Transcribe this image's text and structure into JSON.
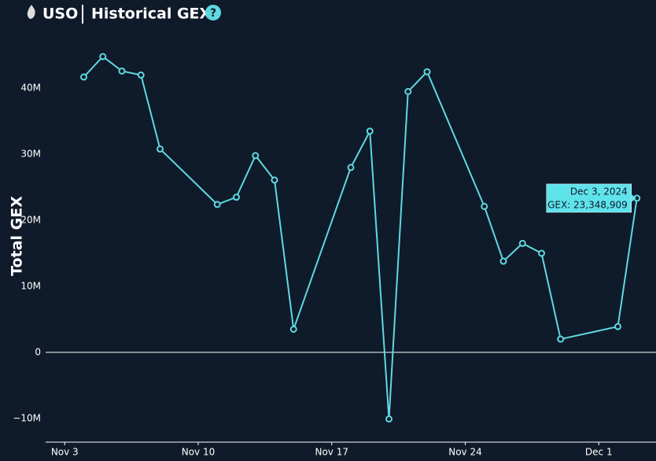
{
  "chart_data": {
    "type": "line",
    "title": "USO",
    "subtitle": "Historical GEX",
    "help": "?",
    "y_label": "Total GEX",
    "x": [
      "2024-11-04",
      "2024-11-05",
      "2024-11-06",
      "2024-11-07",
      "2024-11-08",
      "2024-11-11",
      "2024-11-12",
      "2024-11-13",
      "2024-11-14",
      "2024-11-15",
      "2024-11-18",
      "2024-11-19",
      "2024-11-20",
      "2024-11-21",
      "2024-11-22",
      "2024-11-25",
      "2024-11-26",
      "2024-11-27",
      "2024-11-28",
      "2024-11-29",
      "2024-12-02",
      "2024-12-03"
    ],
    "series": [
      {
        "name": "GEX",
        "color": "#5fd8e0",
        "values": [
          41700000,
          44800000,
          42600000,
          42000000,
          30800000,
          22400000,
          23500000,
          29800000,
          26100000,
          3500000,
          28000000,
          33500000,
          -10100000,
          39500000,
          42500000,
          22100000,
          13800000,
          16500000,
          15000000,
          2000000,
          3900000,
          23348909
        ]
      }
    ],
    "xlim": [
      "2024-11-02",
      "2024-12-04"
    ],
    "xticks": [
      {
        "value": "2024-11-03",
        "label": "Nov 3"
      },
      {
        "value": "2024-11-10",
        "label": "Nov 10"
      },
      {
        "value": "2024-11-17",
        "label": "Nov 17"
      },
      {
        "value": "2024-11-24",
        "label": "Nov 24"
      },
      {
        "value": "2024-12-01",
        "label": "Dec 1"
      }
    ],
    "ylim": [
      -13600000,
      48600000
    ],
    "yticks": [
      {
        "value": -10000000,
        "label": "−10M"
      },
      {
        "value": 0,
        "label": "0"
      },
      {
        "value": 10000000,
        "label": "10M"
      },
      {
        "value": 20000000,
        "label": "20M"
      },
      {
        "value": 30000000,
        "label": "30M"
      },
      {
        "value": 40000000,
        "label": "40M"
      }
    ],
    "tooltip": {
      "date": "Dec 3, 2024",
      "label": "GEX: 23,348,909"
    }
  }
}
